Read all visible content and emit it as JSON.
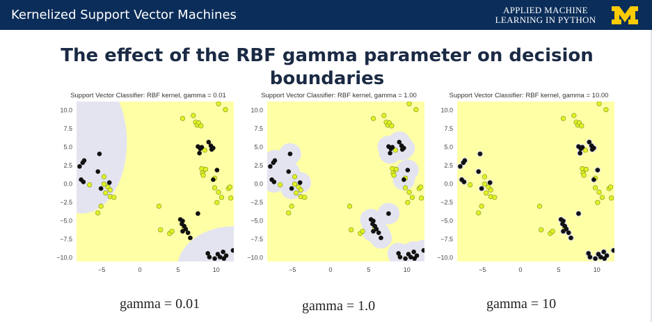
{
  "header": {
    "title": "Kernelized Support Vector Machines",
    "subtitle_line1": "APPLIED MACHINE",
    "subtitle_line2": "LEARNING IN PYTHON",
    "logo_icon": "block-m-logo-icon",
    "brand_color": "#0b2d59",
    "logo_color": "#ffcb05"
  },
  "slide": {
    "title_line1": "The effect of the RBF gamma parameter on decision",
    "title_line2": "boundaries"
  },
  "labels": [
    "gamma = 0.01",
    "gamma = 1.0",
    "gamma = 10"
  ],
  "chart_data": [
    {
      "type": "scatter",
      "title": "Support Vector Classifier: RBF kernel, gamma = 0.01",
      "xlim": [
        -8.3,
        12.3
      ],
      "ylim": [
        -10.5,
        11.2
      ],
      "xticks": [
        -5,
        0,
        5,
        10
      ],
      "yticks": [
        10.0,
        7.5,
        5.0,
        2.5,
        0.0,
        -2.5,
        -5.0,
        -7.5,
        -10.0
      ],
      "xtick_labels": [
        "−5",
        "0",
        "5",
        "10"
      ],
      "ytick_labels": [
        "10.0",
        "7.5",
        "5.0",
        "2.5",
        "0.0",
        "−2.5",
        "−5.0",
        "−7.5",
        "−10.0"
      ],
      "regions": [
        {
          "shape": "ellipse",
          "cx": -7.6,
          "cy": 5.7,
          "rx": 5.9,
          "ry": 9.7
        },
        {
          "shape": "ellipse",
          "cx": 12.4,
          "cy": -11.4,
          "rx": 7.5,
          "ry": 5.7
        }
      ]
    },
    {
      "type": "scatter",
      "title": "Support Vector Classifier: RBF kernel, gamma = 1.00",
      "xlim": [
        -8.3,
        12.3
      ],
      "ylim": [
        -10.5,
        11.2
      ],
      "xticks": [
        -5,
        0,
        5,
        10
      ],
      "yticks": [
        10.0,
        7.5,
        5.0,
        2.5,
        0.0,
        -2.5,
        -5.0,
        -7.5,
        -10.0
      ],
      "xtick_labels": [
        "−5",
        "0",
        "5",
        "10"
      ],
      "ytick_labels": [
        "10.0",
        "7.5",
        "5.0",
        "2.5",
        "0.0",
        "−2.5",
        "−5.0",
        "−7.5",
        "−10.0"
      ],
      "halo": 1.45
    },
    {
      "type": "scatter",
      "title": "Support Vector Classifier: RBF kernel, gamma = 10.00",
      "xlim": [
        -8.3,
        12.3
      ],
      "ylim": [
        -10.5,
        11.2
      ],
      "xticks": [
        -5,
        0,
        5,
        10
      ],
      "yticks": [
        10.0,
        7.5,
        5.0,
        2.5,
        0.0,
        -2.5,
        -5.0,
        -7.5,
        -10.0
      ],
      "xtick_labels": [
        "−5",
        "0",
        "5",
        "10"
      ],
      "ytick_labels": [
        "10.0",
        "7.5",
        "5.0",
        "2.5",
        "0.0",
        "−2.5",
        "−5.0",
        "−7.5",
        "−10.0"
      ],
      "halo": 0.42
    }
  ],
  "points": {
    "class_0_black": [
      [
        -7.9,
        2.4
      ],
      [
        -7.5,
        2.9
      ],
      [
        -7.3,
        3.2
      ],
      [
        -7.7,
        0.6
      ],
      [
        -7.4,
        0.3
      ],
      [
        -5.3,
        4.1
      ],
      [
        -5.5,
        1.7
      ],
      [
        -5.1,
        -0.6
      ],
      [
        -4.0,
        0.2
      ],
      [
        7.6,
        5.1
      ],
      [
        7.9,
        4.8
      ],
      [
        8.1,
        5.0
      ],
      [
        7.8,
        4.2
      ],
      [
        9.0,
        5.7
      ],
      [
        9.3,
        5.2
      ],
      [
        9.4,
        4.7
      ],
      [
        9.6,
        4.9
      ],
      [
        10.1,
        1.9
      ],
      [
        9.6,
        0.6
      ],
      [
        5.3,
        -4.8
      ],
      [
        5.6,
        -5.0
      ],
      [
        5.5,
        -5.4
      ],
      [
        5.8,
        -5.7
      ],
      [
        6.0,
        -6.1
      ],
      [
        6.3,
        -6.6
      ],
      [
        5.6,
        -6.4
      ],
      [
        7.6,
        -4.0
      ],
      [
        6.6,
        -7.3
      ],
      [
        8.9,
        -9.4
      ],
      [
        9.1,
        -9.9
      ],
      [
        9.8,
        -10.1
      ],
      [
        10.2,
        -9.5
      ],
      [
        10.5,
        -9.9
      ],
      [
        11.0,
        -10.1
      ],
      [
        11.3,
        -9.7
      ],
      [
        10.9,
        -9.2
      ],
      [
        12.2,
        -9.0
      ]
    ],
    "class_1_yellow": [
      [
        -6.6,
        -0.1
      ],
      [
        -5.1,
        -3.0
      ],
      [
        -5.5,
        -3.9
      ],
      [
        -4.7,
        1.0
      ],
      [
        -4.7,
        0.0
      ],
      [
        -4.2,
        -0.4
      ],
      [
        -4.5,
        -1.2
      ],
      [
        -3.9,
        -1.7
      ],
      [
        -3.4,
        -1.8
      ],
      [
        -3.9,
        -0.8
      ],
      [
        2.5,
        -3.0
      ],
      [
        2.7,
        -6.2
      ],
      [
        3.9,
        -6.7
      ],
      [
        4.2,
        -6.4
      ],
      [
        5.8,
        -5.9
      ],
      [
        5.6,
        8.9
      ],
      [
        7.0,
        9.3
      ],
      [
        7.3,
        8.4
      ],
      [
        7.5,
        8.0
      ],
      [
        7.7,
        8.3
      ],
      [
        8.0,
        7.9
      ],
      [
        10.3,
        10.9
      ],
      [
        11.2,
        10.1
      ],
      [
        8.5,
        4.6
      ],
      [
        8.1,
        2.1
      ],
      [
        8.2,
        1.5
      ],
      [
        8.6,
        2.0
      ],
      [
        8.3,
        1.2
      ],
      [
        9.8,
        0.8
      ],
      [
        9.8,
        -0.5
      ],
      [
        10.3,
        -1.1
      ],
      [
        10.7,
        -1.8
      ],
      [
        11.6,
        -0.6
      ],
      [
        11.8,
        -0.4
      ],
      [
        11.9,
        -1.9
      ],
      [
        10.1,
        -2.5
      ]
    ]
  },
  "colors": {
    "class_1_region": "#ffffa6",
    "class_0_region": "#e4e4f0",
    "class_0_point": "#111111",
    "class_1_point": "#e0f225",
    "class_1_point_edge": "#7c8a1a"
  }
}
